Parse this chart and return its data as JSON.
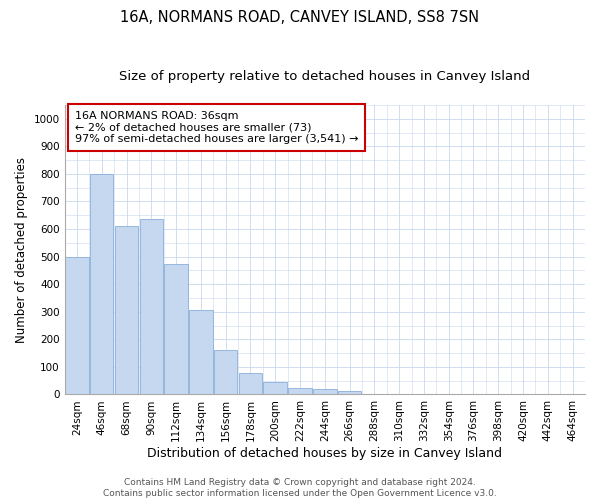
{
  "title": "16A, NORMANS ROAD, CANVEY ISLAND, SS8 7SN",
  "subtitle": "Size of property relative to detached houses in Canvey Island",
  "xlabel": "Distribution of detached houses by size in Canvey Island",
  "ylabel": "Number of detached properties",
  "bar_values": [
    500,
    800,
    610,
    635,
    475,
    305,
    160,
    78,
    45,
    25,
    20,
    12,
    0,
    0,
    0,
    0,
    0,
    0,
    0,
    0,
    0
  ],
  "categories": [
    "24sqm",
    "46sqm",
    "68sqm",
    "90sqm",
    "112sqm",
    "134sqm",
    "156sqm",
    "178sqm",
    "200sqm",
    "222sqm",
    "244sqm",
    "266sqm",
    "288sqm",
    "310sqm",
    "332sqm",
    "354sqm",
    "376sqm",
    "398sqm",
    "420sqm",
    "442sqm",
    "464sqm"
  ],
  "bar_color": "#c5d8f0",
  "bar_edge_color": "#8ab0d8",
  "annotation_text": "16A NORMANS ROAD: 36sqm\n← 2% of detached houses are smaller (73)\n97% of semi-detached houses are larger (3,541) →",
  "annotation_box_edge": "#cc0000",
  "ylim": [
    0,
    1050
  ],
  "yticks": [
    0,
    100,
    200,
    300,
    400,
    500,
    600,
    700,
    800,
    900,
    1000
  ],
  "background_color": "#ffffff",
  "grid_color": "#c8d8ee",
  "footer_text": "Contains HM Land Registry data © Crown copyright and database right 2024.\nContains public sector information licensed under the Open Government Licence v3.0.",
  "title_fontsize": 10.5,
  "subtitle_fontsize": 9.5,
  "xlabel_fontsize": 9,
  "ylabel_fontsize": 8.5,
  "tick_fontsize": 7.5,
  "annotation_fontsize": 8,
  "footer_fontsize": 6.5
}
